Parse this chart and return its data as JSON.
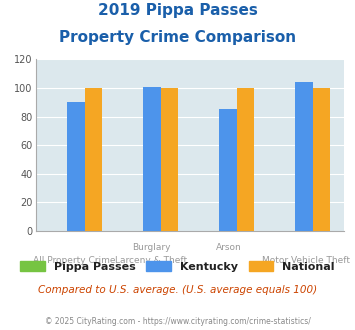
{
  "title_line1": "2019 Pippa Passes",
  "title_line2": "Property Crime Comparison",
  "pippa_passes": [
    0,
    0,
    0,
    0
  ],
  "kentucky": [
    90,
    101,
    85,
    104
  ],
  "national": [
    100,
    100,
    100,
    100
  ],
  "color_pippa": "#76c442",
  "color_kentucky": "#4d94eb",
  "color_national": "#f5a623",
  "ylim": [
    0,
    120
  ],
  "yticks": [
    0,
    20,
    40,
    60,
    80,
    100,
    120
  ],
  "bg_color": "#dce8ed",
  "x_top_labels": [
    "",
    "Burglary",
    "Arson",
    ""
  ],
  "x_bot_labels": [
    "All Property Crime",
    "Larceny & Theft",
    "",
    "Motor Vehicle Theft"
  ],
  "footer_text": "Compared to U.S. average. (U.S. average equals 100)",
  "copyright_text": "© 2025 CityRating.com - https://www.cityrating.com/crime-statistics/",
  "title_color": "#1a5faa",
  "footer_color": "#cc4400",
  "copyright_color": "#888888",
  "legend_labels": [
    "Pippa Passes",
    "Kentucky",
    "National"
  ]
}
